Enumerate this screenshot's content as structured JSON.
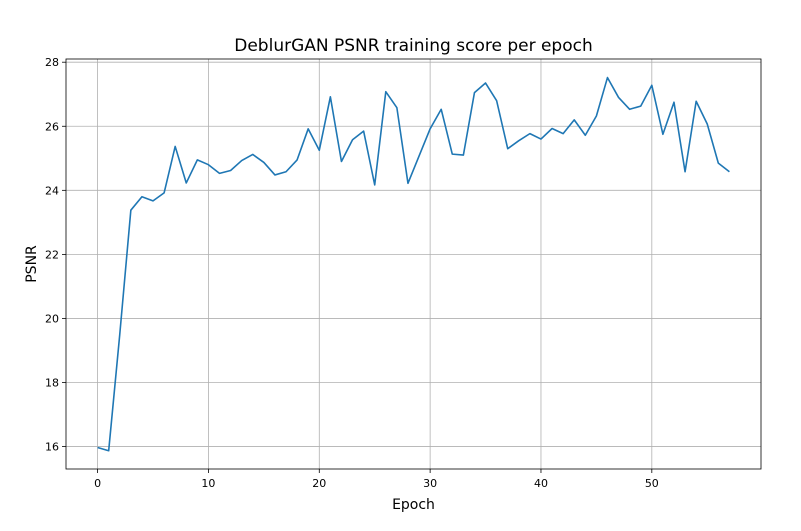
{
  "chart_data": {
    "type": "line",
    "title": "DeblurGAN PSNR training score per epoch",
    "xlabel": "Epoch",
    "ylabel": "PSNR",
    "xlim": [
      -2.85,
      59.85
    ],
    "ylim": [
      15.3,
      28.1
    ],
    "xticks": [
      0,
      10,
      20,
      30,
      40,
      50
    ],
    "yticks": [
      16,
      18,
      20,
      22,
      24,
      26,
      28
    ],
    "grid": true,
    "series": [
      {
        "color": "#1f77b4",
        "x": [
          0,
          1,
          2,
          3,
          4,
          5,
          6,
          7,
          8,
          9,
          10,
          11,
          12,
          13,
          14,
          15,
          16,
          17,
          18,
          19,
          20,
          21,
          22,
          23,
          24,
          25,
          26,
          27,
          28,
          29,
          30,
          31,
          32,
          33,
          34,
          35,
          36,
          37,
          38,
          39,
          40,
          41,
          42,
          43,
          44,
          45,
          46,
          47,
          48,
          49,
          50,
          51,
          52,
          53,
          54,
          55,
          56,
          57
        ],
        "values": [
          15.97,
          15.87,
          19.5,
          23.38,
          23.8,
          23.67,
          23.92,
          25.37,
          24.23,
          24.95,
          24.8,
          24.53,
          24.62,
          24.93,
          25.12,
          24.87,
          24.48,
          24.58,
          24.95,
          25.92,
          25.25,
          26.92,
          24.9,
          25.58,
          25.85,
          24.17,
          27.08,
          26.58,
          24.22,
          25.07,
          25.92,
          26.53,
          25.13,
          25.1,
          27.05,
          27.35,
          26.8,
          25.3,
          25.55,
          25.77,
          25.6,
          25.93,
          25.77,
          26.2,
          25.72,
          26.32,
          27.52,
          26.9,
          26.53,
          26.63,
          27.28,
          25.75,
          26.75,
          24.58,
          26.78,
          26.07,
          24.85,
          24.58
        ]
      }
    ]
  }
}
